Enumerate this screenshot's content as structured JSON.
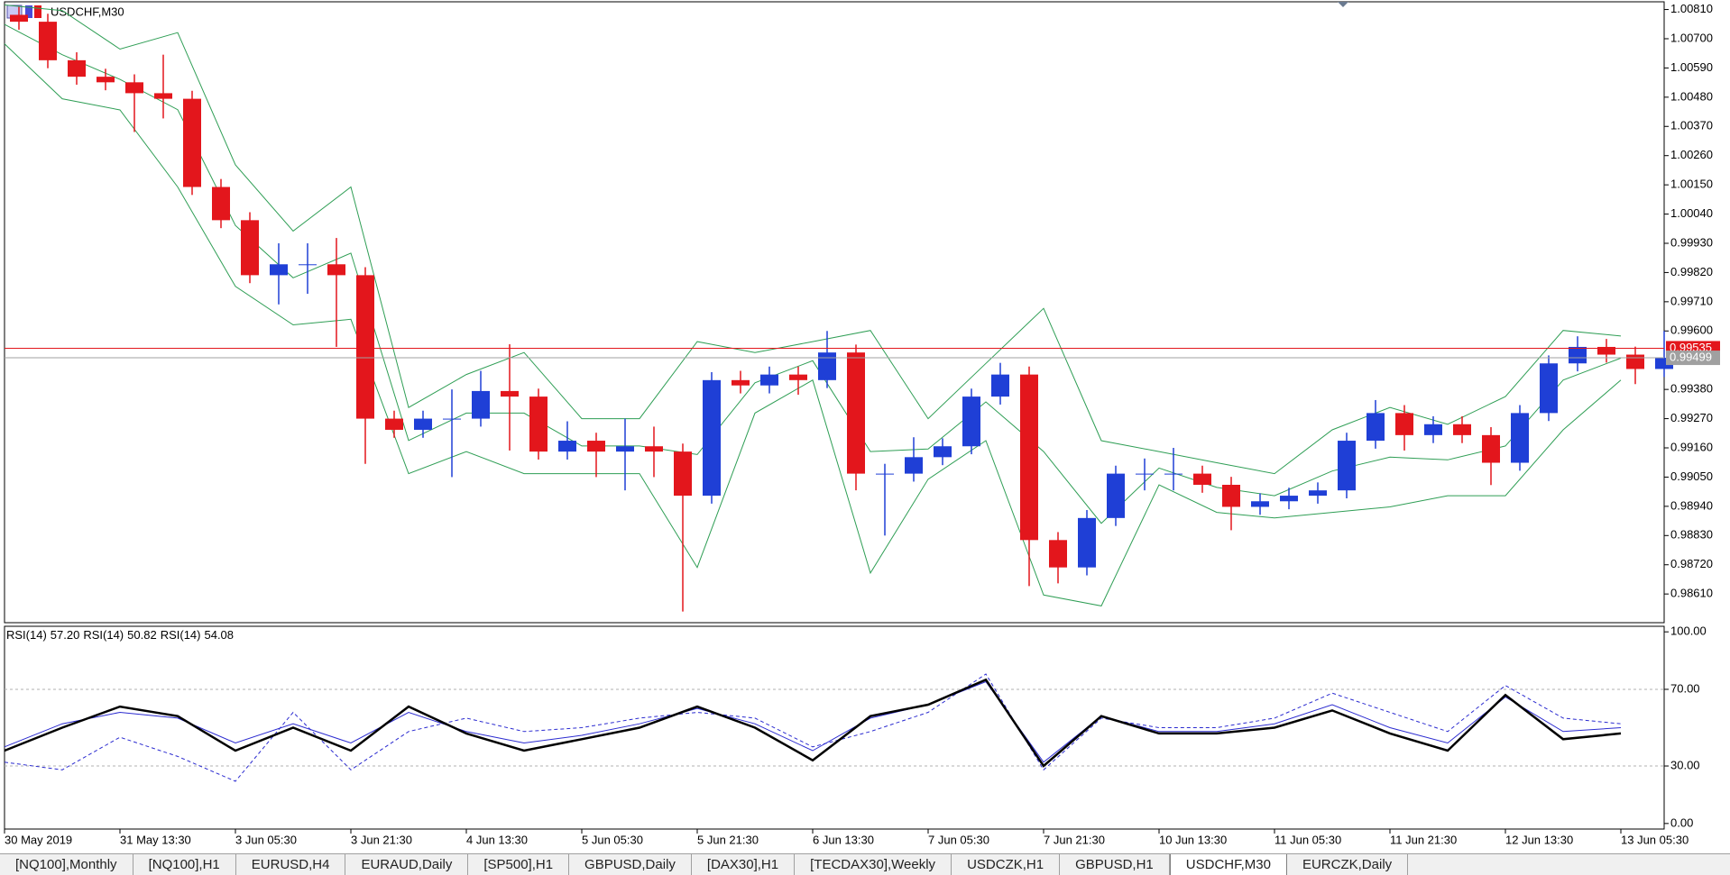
{
  "symbol_label": "USDCHF,M30",
  "chart_data": [
    {
      "type": "candlestick",
      "x": [
        0,
        8,
        16,
        24,
        32,
        40,
        48,
        56,
        64,
        72,
        80,
        88,
        96,
        104,
        112,
        120,
        128,
        136,
        144,
        152,
        160,
        168,
        176,
        184,
        192,
        200,
        208,
        216,
        224,
        232,
        240,
        248,
        256,
        264,
        272,
        280,
        288,
        296,
        304,
        312,
        320,
        328,
        336,
        344,
        352,
        360,
        368,
        376,
        384,
        392,
        400,
        408,
        416,
        424,
        432,
        440,
        448,
        456
      ],
      "open": [
        1.0079,
        1.00764,
        1.00619,
        1.00557,
        1.00536,
        1.00495,
        1.00474,
        1.00142,
        1.00017,
        0.9981,
        0.99851,
        0.99851,
        0.9981,
        0.9927,
        0.99228,
        0.9927,
        0.9927,
        0.99374,
        0.99353,
        0.99146,
        0.99187,
        0.99146,
        0.99166,
        0.99146,
        0.9898,
        0.99415,
        0.99395,
        0.99436,
        0.99415,
        0.99519,
        0.99063,
        0.99063,
        0.99125,
        0.99166,
        0.99353,
        0.99436,
        0.98813,
        0.9871,
        0.98896,
        0.99063,
        0.99063,
        0.99063,
        0.99021,
        0.98938,
        0.98959,
        0.9898,
        0.99,
        0.99187,
        0.99291,
        0.99208,
        0.99249,
        0.99208,
        0.99104,
        0.99291,
        0.99478,
        0.9954,
        0.99511,
        0.99457
      ],
      "high": [
        1.0082,
        1.00794,
        1.00649,
        1.00587,
        1.00566,
        1.0064,
        1.00504,
        1.00172,
        1.00047,
        0.9993,
        0.9993,
        0.9995,
        0.9984,
        0.993,
        0.993,
        0.9938,
        0.9945,
        0.9955,
        0.99383,
        0.9926,
        0.99217,
        0.9927,
        0.9924,
        0.99176,
        0.99445,
        0.9945,
        0.99466,
        0.99466,
        0.996,
        0.99549,
        0.991,
        0.992,
        0.99196,
        0.99383,
        0.9948,
        0.99466,
        0.98843,
        0.98926,
        0.99093,
        0.9912,
        0.9916,
        0.99093,
        0.99051,
        0.98989,
        0.9901,
        0.9903,
        0.99217,
        0.9934,
        0.99321,
        0.99279,
        0.99279,
        0.99238,
        0.99321,
        0.99508,
        0.9958,
        0.9957,
        0.99541,
        0.996
      ],
      "low": [
        1.00734,
        1.00589,
        1.00527,
        1.00506,
        1.00349,
        1.004,
        1.00112,
        0.99987,
        0.9978,
        0.997,
        0.9974,
        0.9954,
        0.991,
        0.99198,
        0.99198,
        0.9905,
        0.9924,
        0.9915,
        0.99116,
        0.99116,
        0.9905,
        0.99,
        0.9905,
        0.98544,
        0.9895,
        0.99365,
        0.99365,
        0.9936,
        0.99385,
        0.99,
        0.9883,
        0.99033,
        0.99095,
        0.99136,
        0.99323,
        0.9864,
        0.9865,
        0.9868,
        0.98866,
        0.99,
        0.99,
        0.98991,
        0.9885,
        0.98908,
        0.98929,
        0.9895,
        0.9897,
        0.99157,
        0.9915,
        0.99178,
        0.99178,
        0.9902,
        0.99074,
        0.99261,
        0.99448,
        0.99481,
        0.994,
        0.99427
      ],
      "close": [
        1.00764,
        1.00619,
        1.00557,
        1.00536,
        1.00495,
        1.00474,
        1.00142,
        1.00017,
        0.9981,
        0.99851,
        0.99851,
        0.9981,
        0.9927,
        0.99228,
        0.9927,
        0.9927,
        0.99374,
        0.99353,
        0.99146,
        0.99187,
        0.99146,
        0.99166,
        0.99146,
        0.9898,
        0.99415,
        0.99395,
        0.99436,
        0.99415,
        0.99519,
        0.99063,
        0.99063,
        0.99125,
        0.99166,
        0.99353,
        0.99436,
        0.98813,
        0.9871,
        0.98896,
        0.99063,
        0.99063,
        0.99063,
        0.99021,
        0.98938,
        0.98959,
        0.9898,
        0.99,
        0.99187,
        0.99291,
        0.99208,
        0.99249,
        0.99208,
        0.99104,
        0.99291,
        0.99478,
        0.9954,
        0.99511,
        0.99457,
        0.99499
      ],
      "up_color": "#1f3fd6",
      "down_color": "#e3161c",
      "band_x": [
        0,
        16,
        32,
        48,
        64,
        80,
        96,
        112,
        128,
        144,
        160,
        176,
        192,
        208,
        224,
        240,
        256,
        272,
        288,
        304,
        320,
        336,
        352,
        368,
        384,
        400,
        416,
        432,
        448
      ],
      "bands": [
        {
          "color": "#2f9e55",
          "values": [
            1.00827,
            1.00806,
            1.00661,
            1.00723,
            1.00225,
            0.99976,
            1.00142,
            0.99312,
            0.99436,
            0.99519,
            0.9927,
            0.9927,
            0.9956,
            0.99519,
            0.9956,
            0.99602,
            0.9927,
            0.99478,
            0.99685,
            0.99187,
            0.99146,
            0.99104,
            0.99063,
            0.99228,
            0.99312,
            0.99249,
            0.99353,
            0.99602,
            0.99581
          ]
        },
        {
          "color": "#2f9e55",
          "values": [
            1.00754,
            1.0064,
            1.00547,
            1.00433,
            0.99997,
            0.998,
            0.99893,
            0.99188,
            0.99291,
            0.99291,
            0.99167,
            0.99167,
            0.99135,
            0.99405,
            0.99488,
            0.99146,
            0.99156,
            0.99333,
            0.99146,
            0.98876,
            0.99084,
            0.99011,
            0.9898,
            0.99073,
            0.99125,
            0.99115,
            0.99167,
            0.99415,
            0.99498
          ]
        },
        {
          "color": "#2f9e55",
          "values": [
            1.00681,
            1.00474,
            1.00432,
            1.00142,
            0.99768,
            0.99623,
            0.99644,
            0.99063,
            0.99146,
            0.99063,
            0.99063,
            0.99063,
            0.9871,
            0.99291,
            0.99415,
            0.98689,
            0.99042,
            0.99187,
            0.98606,
            0.98565,
            0.99021,
            0.98917,
            0.98896,
            0.98917,
            0.98938,
            0.9898,
            0.9898,
            0.99228,
            0.99415
          ]
        }
      ],
      "price_lines": [
        {
          "value": 0.99535,
          "label": "0.99535",
          "color": "#e3161c"
        },
        {
          "value": 0.99499,
          "label": "0.99499",
          "color": "#a0a0a0"
        }
      ],
      "xlim": [
        0,
        460
      ],
      "ylim": [
        0.98502,
        1.00839
      ],
      "yticks": [
        {
          "value": 1.0081,
          "label": "1.00810"
        },
        {
          "value": 1.007,
          "label": "1.00700"
        },
        {
          "value": 1.0059,
          "label": "1.00590"
        },
        {
          "value": 1.0048,
          "label": "1.00480"
        },
        {
          "value": 1.0037,
          "label": "1.00370"
        },
        {
          "value": 1.0026,
          "label": "1.00260"
        },
        {
          "value": 1.0015,
          "label": "1.00150"
        },
        {
          "value": 1.0004,
          "label": "1.00040"
        },
        {
          "value": 0.9993,
          "label": "0.99930"
        },
        {
          "value": 0.9982,
          "label": "0.99820"
        },
        {
          "value": 0.9971,
          "label": "0.99710"
        },
        {
          "value": 0.996,
          "label": "0.99600"
        },
        {
          "value": 0.9938,
          "label": "0.99380"
        },
        {
          "value": 0.9927,
          "label": "0.99270"
        },
        {
          "value": 0.9916,
          "label": "0.99160"
        },
        {
          "value": 0.9905,
          "label": "0.99050"
        },
        {
          "value": 0.9894,
          "label": "0.98940"
        },
        {
          "value": 0.9883,
          "label": "0.98830"
        },
        {
          "value": 0.9872,
          "label": "0.98720"
        },
        {
          "value": 0.9861,
          "label": "0.98610"
        }
      ]
    },
    {
      "type": "line",
      "x": [
        0,
        16,
        32,
        48,
        64,
        80,
        96,
        112,
        128,
        144,
        160,
        176,
        192,
        208,
        224,
        240,
        256,
        272,
        288,
        304,
        320,
        336,
        352,
        368,
        384,
        400,
        416,
        432,
        448
      ],
      "series": [
        {
          "name": "RSI(14)",
          "last": {
            "value": 57.2,
            "label": "57.20"
          },
          "color": "#000000",
          "width": 2.5,
          "dashed": false,
          "values": [
            38,
            50,
            61,
            56,
            38,
            50,
            38,
            61,
            47,
            38,
            44,
            50,
            61,
            50,
            33,
            56,
            62,
            75,
            30,
            56,
            47,
            47,
            50,
            59,
            47,
            38,
            67,
            44,
            47
          ]
        },
        {
          "name": "RSI(14)",
          "last": {
            "value": 50.82,
            "label": "50.82"
          },
          "color": "#2b2bd0",
          "width": 1,
          "dashed": false,
          "values": [
            40,
            52,
            58,
            55,
            42,
            52,
            42,
            58,
            48,
            42,
            46,
            52,
            60,
            52,
            38,
            55,
            62,
            74,
            32,
            56,
            48,
            48,
            52,
            62,
            50,
            42,
            66,
            48,
            50
          ]
        },
        {
          "name": "RSI(14)",
          "last": {
            "value": 54.08,
            "label": "54.08"
          },
          "color": "#2b2bd0",
          "width": 1,
          "dashed": true,
          "values": [
            32,
            28,
            45,
            35,
            22,
            58,
            28,
            48,
            55,
            48,
            50,
            55,
            58,
            55,
            40,
            48,
            58,
            78,
            28,
            55,
            50,
            50,
            55,
            68,
            58,
            48,
            72,
            55,
            52
          ]
        }
      ],
      "xlim": [
        0,
        460
      ],
      "ylim": [
        -2.9,
        102.9
      ],
      "yticks": [
        {
          "value": 100,
          "label": "100.00"
        },
        {
          "value": 70,
          "label": "70.00"
        },
        {
          "value": 30,
          "label": "30.00"
        },
        {
          "value": 0,
          "label": "0.00"
        }
      ],
      "xticks": [
        {
          "value": 0,
          "label": "30 May 2019"
        },
        {
          "value": 32,
          "label": "31 May 13:30"
        },
        {
          "value": 64,
          "label": "3 Jun 05:30"
        },
        {
          "value": 96,
          "label": "3 Jun 21:30"
        },
        {
          "value": 128,
          "label": "4 Jun 13:30"
        },
        {
          "value": 160,
          "label": "5 Jun 05:30"
        },
        {
          "value": 192,
          "label": "5 Jun 21:30"
        },
        {
          "value": 224,
          "label": "6 Jun 13:30"
        },
        {
          "value": 256,
          "label": "7 Jun 05:30"
        },
        {
          "value": 288,
          "label": "7 Jun 21:30"
        },
        {
          "value": 320,
          "label": "10 Jun 13:30"
        },
        {
          "value": 352,
          "label": "11 Jun 05:30"
        },
        {
          "value": 384,
          "label": "11 Jun 21:30"
        },
        {
          "value": 416,
          "label": "12 Jun 13:30"
        },
        {
          "value": 448,
          "label": "13 Jun 05:30"
        }
      ]
    }
  ],
  "tabs": [
    "[NQ100],Monthly",
    "[NQ100],H1",
    "EURUSD,H4",
    "EURAUD,Daily",
    "[SP500],H1",
    "GBPUSD,Daily",
    "[DAX30],H1",
    "[TECDAX30],Weekly",
    "USDCZK,H1",
    "GBPUSD,H1",
    "USDCHF,M30",
    "EURCZK,Daily"
  ],
  "active_tab": 10
}
